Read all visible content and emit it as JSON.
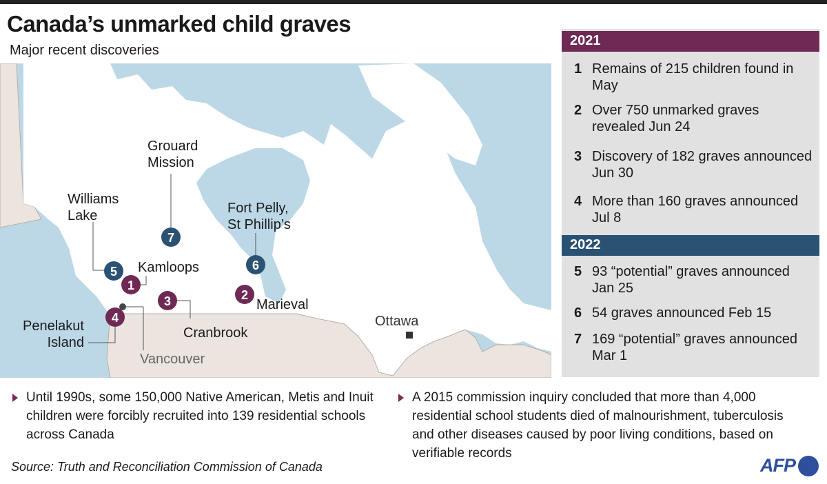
{
  "header": {
    "title": "Canada’s unmarked child graves",
    "subtitle": "Major recent discoveries"
  },
  "colors": {
    "year_2021": "#6e2a55",
    "year_2022": "#2a5273",
    "water": "#bcd8e7",
    "usa": "#ece4de",
    "canada": "#ffffff"
  },
  "map": {
    "labels": {
      "grouard": [
        "Grouard",
        "Mission"
      ],
      "williams": [
        "Williams",
        "Lake"
      ],
      "kamloops": "Kamloops",
      "fortpelly": [
        "Fort Pelly,",
        "St Phillip’s"
      ],
      "marieval": "Marieval",
      "cranbrook": "Cranbrook",
      "penelakut": [
        "Penelakut",
        "Island"
      ],
      "vancouver": "Vancouver",
      "ottawa": "Ottawa"
    },
    "markers": [
      "1",
      "2",
      "3",
      "4",
      "5",
      "6",
      "7"
    ]
  },
  "panel": {
    "year1": "2021",
    "year2": "2022",
    "items": [
      {
        "n": "1",
        "text": "Remains of 215 children found in May"
      },
      {
        "n": "2",
        "text": "Over 750 unmarked graves revealed Jun 24"
      },
      {
        "n": "3",
        "text": "Discovery of 182 graves announced Jun 30"
      },
      {
        "n": "4",
        "text": "More than 160 graves announced Jul 8"
      },
      {
        "n": "5",
        "text": "93 “potential” graves announced Jan 25"
      },
      {
        "n": "6",
        "text": "54 graves announced Feb 15"
      },
      {
        "n": "7",
        "text": "169 “potential” graves announced Mar 1"
      }
    ]
  },
  "notes": [
    "Until 1990s, some 150,000 Native American, Metis and Inuit children were forcibly recruited into 139 residential schools across Canada",
    "A 2015 commission inquiry  concluded that more than 4,000 residential school students died of malnourishment, tuberculosis and other diseases caused by poor living conditions, based on verifiable records"
  ],
  "source": "Source: Truth and Reconciliation Commission of Canada",
  "logo": "AFP"
}
